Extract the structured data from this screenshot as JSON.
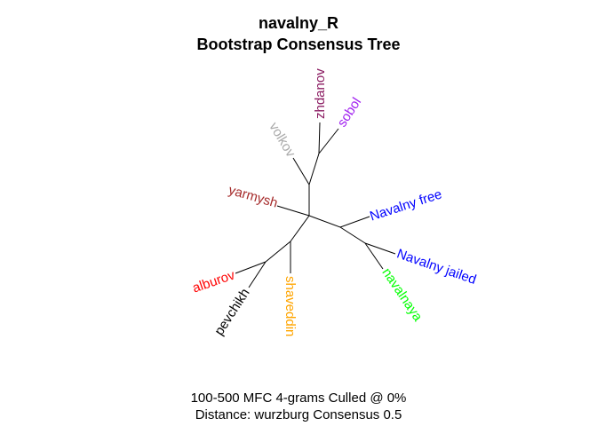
{
  "title": "navalny_R",
  "subtitle": "Bootstrap Consensus Tree",
  "footer": {
    "line1": "100-500 MFC 4-grams Culled @ 0%",
    "line2": "Distance: wurzburg Consensus 0.5"
  },
  "tree": {
    "type": "unrooted-consensus-tree",
    "leaves": [
      {
        "id": "zhdanov",
        "label": "zhdanov",
        "color": "#8B1C62"
      },
      {
        "id": "sobol",
        "label": "sobol",
        "color": "#A020F0"
      },
      {
        "id": "volkov",
        "label": "volkov",
        "color": "#A9A9A9"
      },
      {
        "id": "yarmysh",
        "label": "yarmysh",
        "color": "#A52A2A"
      },
      {
        "id": "navalny-free",
        "label": "Navalny free",
        "color": "#0000FF"
      },
      {
        "id": "navalny-jailed",
        "label": "Navalny jailed",
        "color": "#0000FF"
      },
      {
        "id": "navalnaya",
        "label": "navalnaya",
        "color": "#00FF00"
      },
      {
        "id": "alburov",
        "label": "alburov",
        "color": "#FF0000"
      },
      {
        "id": "pevchikh",
        "label": "pevchikh",
        "color": "#000000"
      },
      {
        "id": "shaveddin",
        "label": "shaveddin",
        "color": "#FFA500"
      }
    ]
  }
}
